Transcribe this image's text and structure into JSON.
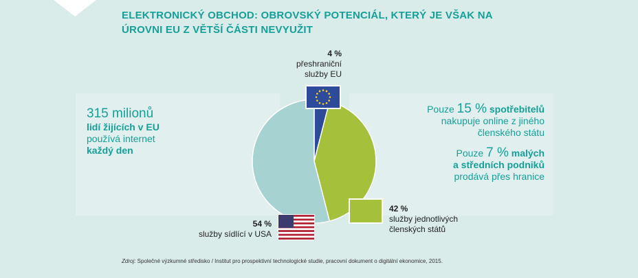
{
  "title": {
    "line1": "ELEKTRONICKÝ OBCHOD: OBROVSKÝ POTENCIÁL, KTERÝ JE VŠAK NA",
    "line2": "ÚROVNI EU Z VĚTŠÍ ČÁSTI NEVYUŽIT"
  },
  "left_stat": {
    "big": "315 milionů",
    "line2": "lidí žijících v EU",
    "line3": "používá internet",
    "line4": "každý den"
  },
  "right_stats": [
    {
      "prefix": "Pouze ",
      "number": "15 %",
      "bold_text": " spotřebitelů",
      "line2": "nakupuje online z jiného",
      "line3": "členského státu"
    },
    {
      "prefix": "Pouze ",
      "number": "7 %",
      "bold_text": " malých",
      "line2": "a středních podniků",
      "line3": "prodává přes hranice"
    }
  ],
  "chart_data": {
    "type": "pie",
    "slices": [
      {
        "label": "přeshraniční služby EU",
        "value": 4,
        "display": "4 %",
        "line1": "přeshraniční",
        "line2": "služby EU",
        "color": "#2e4a9b"
      },
      {
        "label": "služby jednotlivých členských států",
        "value": 42,
        "display": "42 %",
        "line1": "služby jednotlivých",
        "line2": "členských států",
        "color": "#a5c13c"
      },
      {
        "label": "služby sídlící v USA",
        "value": 54,
        "display": "54 %",
        "line1": "služby sídlící v USA",
        "color": "#a6d3d2"
      }
    ]
  },
  "source": {
    "label": "Zdroj:",
    "text": " Společné výzkumné středisko / Institut pro prospektivní technologické studie, pracovní dokument o digitální ekonomice, 2015."
  },
  "colors": {
    "accent": "#159f97",
    "background": "#d9ecea",
    "eu_flag": "#2e4a9b",
    "member_states": "#a5c13c",
    "usa": "#a6d3d2"
  },
  "icons": [
    "eu-flag-icon",
    "usa-flag-icon",
    "green-square-icon"
  ]
}
